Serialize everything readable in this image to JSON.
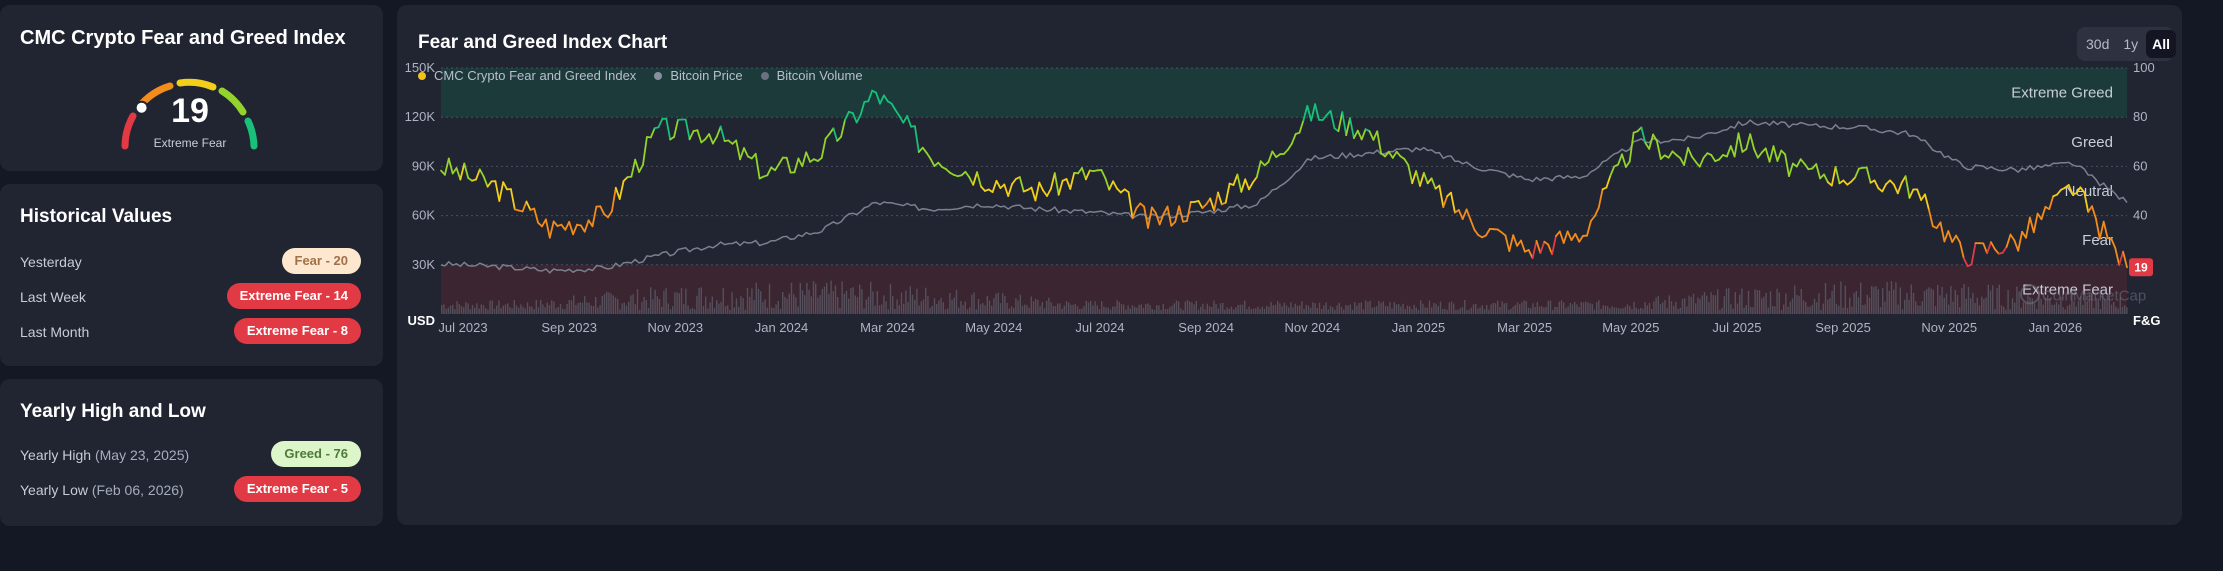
{
  "gauge_card": {
    "title": "CMC Crypto Fear and Greed Index",
    "value": 19,
    "value_text": "19",
    "label": "Extreme Fear"
  },
  "historical": {
    "title": "Historical Values",
    "rows": [
      {
        "label": "Yesterday",
        "badge": "Fear - 20",
        "style": "fear-light"
      },
      {
        "label": "Last Week",
        "badge": "Extreme Fear - 14",
        "style": "extreme"
      },
      {
        "label": "Last Month",
        "badge": "Extreme Fear - 8",
        "style": "extreme"
      }
    ]
  },
  "yearly": {
    "title": "Yearly High and Low",
    "high_label": "Yearly High",
    "high_date": "(May 23, 2025)",
    "high_badge": "Greed - 76",
    "low_label": "Yearly Low",
    "low_date": "(Feb 06, 2026)",
    "low_badge": "Extreme Fear - 5"
  },
  "chart": {
    "title": "Fear and Greed Index Chart",
    "range_buttons": [
      "30d",
      "1y",
      "All"
    ],
    "active_range": "All",
    "legend": [
      {
        "label": "CMC Crypto Fear and Greed Index",
        "color": "#f2c318"
      },
      {
        "label": "Bitcoin Price",
        "color": "#8a8f9e"
      },
      {
        "label": "Bitcoin Volume",
        "color": "#6c7080"
      }
    ],
    "current_value_badge": "19",
    "watermark": "CoinMarketCap"
  },
  "chart_data": {
    "type": "line",
    "left_axis_label": "USD",
    "right_axis_label": "F&G",
    "left_ticks": [
      "150K",
      "120K",
      "90K",
      "60K",
      "30K"
    ],
    "left_tick_values": [
      150000,
      120000,
      90000,
      60000,
      30000
    ],
    "ylim_usd": [
      0,
      150000
    ],
    "right_ticks": [
      "100",
      "80",
      "60",
      "40",
      "20"
    ],
    "right_tick_values": [
      100,
      80,
      60,
      40,
      20
    ],
    "ylim_index": [
      0,
      100
    ],
    "x_ticks": [
      "Jul 2023",
      "Sep 2023",
      "Nov 2023",
      "Jan 2024",
      "Mar 2024",
      "May 2024",
      "Jul 2024",
      "Sep 2024",
      "Nov 2024",
      "Jan 2025",
      "Mar 2025",
      "May 2025",
      "Jul 2025",
      "Sep 2025",
      "Nov 2025",
      "Jan 2026"
    ],
    "zones": [
      {
        "label": "Extreme Greed",
        "from": 80,
        "to": 100,
        "color": "#1c3a3a"
      },
      {
        "label": "Greed",
        "from": 60,
        "to": 80,
        "color": null
      },
      {
        "label": "Neutral",
        "from": 40,
        "to": 60,
        "color": null
      },
      {
        "label": "Fear",
        "from": 20,
        "to": 40,
        "color": null
      },
      {
        "label": "Extreme Fear",
        "from": 0,
        "to": 20,
        "color": "#3a2530"
      }
    ],
    "grid": true,
    "series": [
      {
        "name": "CMC Crypto Fear and Greed Index",
        "x": [
          "Jul 2023",
          "Aug 2023",
          "Sep 2023",
          "Oct 2023",
          "Nov 2023",
          "Dec 2023",
          "Jan 2024",
          "Feb 2024",
          "Mar 2024",
          "Apr 2024",
          "May 2024",
          "Jun 2024",
          "Jul 2024",
          "Aug 2024",
          "Sep 2024",
          "Oct 2024",
          "Nov 2024",
          "Dec 2024",
          "Jan 2025",
          "Feb 2025",
          "Mar 2025",
          "Apr 2025",
          "May 2025",
          "Jun 2025",
          "Jul 2025",
          "Aug 2025",
          "Sep 2025",
          "Oct 2025",
          "Nov 2025",
          "Dec 2025",
          "Jan 2026",
          "Feb 2026"
        ],
        "values": [
          60,
          52,
          35,
          40,
          75,
          74,
          57,
          66,
          90,
          65,
          55,
          50,
          58,
          38,
          44,
          57,
          82,
          75,
          55,
          37,
          26,
          33,
          72,
          62,
          70,
          58,
          56,
          52,
          24,
          30,
          52,
          19
        ]
      },
      {
        "name": "Bitcoin Price",
        "x": [
          "Jul 2023",
          "Aug 2023",
          "Sep 2023",
          "Oct 2023",
          "Nov 2023",
          "Dec 2023",
          "Jan 2024",
          "Feb 2024",
          "Mar 2024",
          "Apr 2024",
          "May 2024",
          "Jun 2024",
          "Jul 2024",
          "Aug 2024",
          "Sep 2024",
          "Oct 2024",
          "Nov 2024",
          "Dec 2024",
          "Jan 2025",
          "Feb 2025",
          "Mar 2025",
          "Apr 2025",
          "May 2025",
          "Jun 2025",
          "Jul 2025",
          "Aug 2025",
          "Sep 2025",
          "Oct 2025",
          "Nov 2025",
          "Dec 2025",
          "Jan 2026",
          "Feb 2026"
        ],
        "values": [
          30500,
          29000,
          26500,
          28000,
          35500,
          42000,
          43500,
          51000,
          68000,
          64000,
          67000,
          64000,
          62000,
          59000,
          62000,
          67000,
          95000,
          98000,
          101000,
          90000,
          82000,
          84000,
          105000,
          107000,
          117000,
          115000,
          114000,
          110000,
          90000,
          88000,
          92000,
          68000
        ]
      }
    ]
  }
}
